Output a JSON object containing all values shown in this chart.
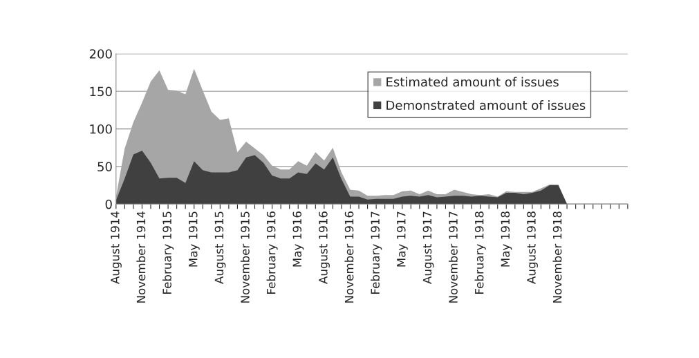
{
  "chart_data": {
    "type": "area",
    "categories": [
      "August 1914",
      null,
      null,
      "November 1914",
      null,
      null,
      "February 1915",
      null,
      null,
      "May 1915",
      null,
      null,
      "August 1915",
      null,
      null,
      "November 1915",
      null,
      null,
      "February 1916",
      null,
      null,
      "May 1916",
      null,
      null,
      "August 1916",
      null,
      null,
      "November 1916",
      null,
      null,
      "February 1917",
      null,
      null,
      "May 1917",
      null,
      null,
      "August 1917",
      null,
      null,
      "November 1917",
      null,
      null,
      "February 1918",
      null,
      null,
      "May 1918",
      null,
      null,
      "August 1918",
      null,
      null,
      "November 1918",
      null,
      null,
      null,
      null,
      null,
      null,
      null,
      null
    ],
    "series": [
      {
        "name": "Estimated amount of issues",
        "color": "#a6a6a6",
        "values": [
          10,
          74,
          109,
          135,
          163,
          178,
          152,
          151,
          146,
          180,
          151,
          123,
          112,
          114,
          69,
          83,
          74,
          65,
          51,
          46,
          46,
          57,
          51,
          69,
          58,
          75,
          42,
          19,
          18,
          11,
          11,
          12,
          12,
          17,
          18,
          13,
          18,
          13,
          13,
          19,
          16,
          13,
          12,
          13,
          10,
          17,
          16,
          16,
          16,
          21,
          26,
          26,
          0,
          null,
          null,
          null,
          null,
          null,
          null,
          null
        ]
      },
      {
        "name": "Demonstrated amount of issues",
        "color": "#404040",
        "values": [
          5,
          34,
          66,
          71,
          55,
          34,
          35,
          35,
          28,
          57,
          45,
          42,
          42,
          42,
          45,
          62,
          65,
          55,
          38,
          34,
          34,
          42,
          40,
          54,
          46,
          62,
          33,
          10,
          10,
          6,
          7,
          7,
          7,
          10,
          11,
          10,
          12,
          9,
          10,
          11,
          11,
          10,
          11,
          10,
          9,
          15,
          15,
          13,
          15,
          18,
          25,
          25,
          0,
          null,
          null,
          null,
          null,
          null,
          null,
          null
        ]
      }
    ],
    "ylim": [
      0,
      200
    ],
    "yticks": [
      0,
      50,
      100,
      150,
      200
    ],
    "grid": "y",
    "legend": "top right"
  }
}
